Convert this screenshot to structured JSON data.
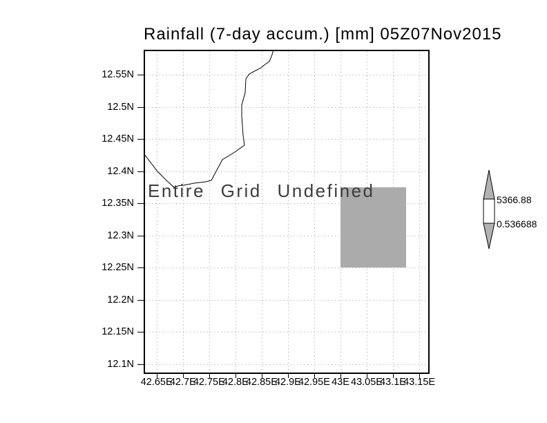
{
  "chart_data": {
    "type": "map",
    "title": "Rainfall (7-day accum.) [mm] 05Z07Nov2015",
    "overlay_message": "Entire Grid Undefined",
    "x_axis": {
      "values": [
        42.65,
        42.7,
        42.75,
        42.8,
        42.85,
        42.9,
        42.95,
        43.0,
        43.05,
        43.1,
        43.15
      ],
      "labels": [
        "42.65E",
        "42.7E",
        "42.75E",
        "42.8E",
        "42.85E",
        "42.9E",
        "42.95E",
        "43E",
        "43.05E",
        "43.1E",
        "43.15E"
      ]
    },
    "y_axis": {
      "values": [
        12.55,
        12.5,
        12.45,
        12.4,
        12.35,
        12.3,
        12.25,
        12.2,
        12.15,
        12.1
      ],
      "labels": [
        "12.55N",
        "12.5N",
        "12.45N",
        "12.4N",
        "12.35N",
        "12.3N",
        "12.25N",
        "12.2N",
        "12.15N",
        "12.1N"
      ]
    },
    "lon_range": [
      42.628,
      43.167
    ],
    "lat_range": [
      12.0866,
      12.5866
    ],
    "grid_style": "dotted",
    "undefined_region": {
      "lon_min": 43.0,
      "lon_max": 43.125,
      "lat_min": 12.25,
      "lat_max": 12.375
    },
    "coastline": [
      [
        42.6254,
        12.4275
      ],
      [
        42.6517,
        12.3995
      ],
      [
        42.6701,
        12.3845
      ],
      [
        42.6832,
        12.3748
      ],
      [
        42.6911,
        12.377
      ],
      [
        42.7016,
        12.378
      ],
      [
        42.7227,
        12.3813
      ],
      [
        42.7437,
        12.3834
      ],
      [
        42.7542,
        12.3856
      ],
      [
        42.7752,
        12.4178
      ],
      [
        42.7989,
        12.4296
      ],
      [
        42.8173,
        12.4404
      ],
      [
        42.8147,
        12.4554
      ],
      [
        42.812,
        12.4855
      ],
      [
        42.812,
        12.5027
      ],
      [
        42.8186,
        12.5221
      ],
      [
        42.8199,
        12.5436
      ],
      [
        42.8265,
        12.5511
      ],
      [
        42.8488,
        12.5608
      ],
      [
        42.8567,
        12.5662
      ],
      [
        42.8646,
        12.5705
      ],
      [
        42.8699,
        12.5812
      ],
      [
        42.8725,
        12.5888
      ]
    ],
    "colorbar": {
      "top_label": "5366.88",
      "bottom_label": "0.536688"
    },
    "colors": {
      "grid": "#b8b8b8",
      "undefined_fill": "#ababab",
      "colorbar_arrow_fill": "#b2b2b2",
      "frame": "#000000",
      "background": "#ffffff"
    }
  }
}
